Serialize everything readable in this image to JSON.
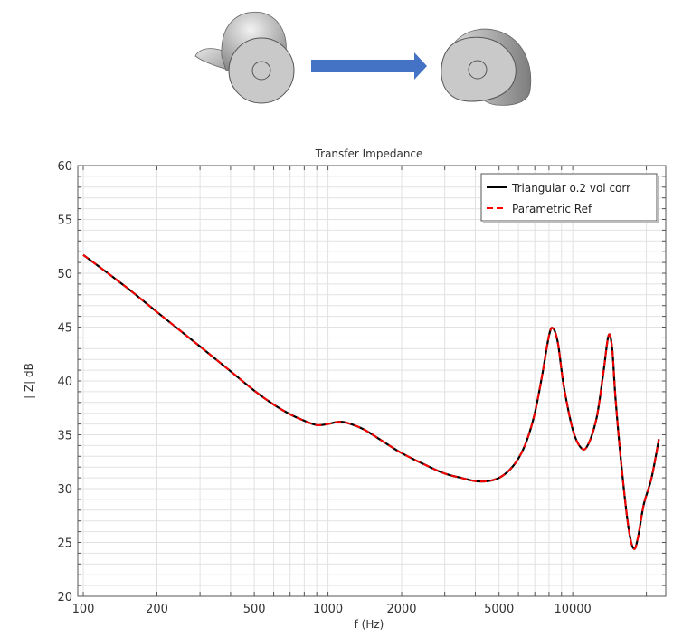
{
  "illustration": {
    "left_model": "earbud-original-shape",
    "arrow": {
      "direction": "right",
      "color": "#4472c4"
    },
    "right_model": "earbud-triangular-shape",
    "model_color": "#c8c8c8"
  },
  "chart_data": {
    "type": "line",
    "title": "Transfer Impedance",
    "xlabel": "f (Hz)",
    "ylabel": "| Z| dB",
    "xscale": "log",
    "xlim": [
      95,
      24000
    ],
    "ylim": [
      20,
      60
    ],
    "x_ticks": [
      100,
      200,
      500,
      1000,
      2000,
      5000,
      10000
    ],
    "x_tick_labels": [
      "100",
      "200",
      "500",
      "1000",
      "2000",
      "5000",
      "10000"
    ],
    "y_ticks": [
      20,
      25,
      30,
      35,
      40,
      45,
      50,
      55,
      60
    ],
    "y_tick_labels": [
      "20",
      "25",
      "30",
      "35",
      "40",
      "45",
      "50",
      "55",
      "60"
    ],
    "grid": true,
    "legend_position": "upper right",
    "x": [
      100,
      150,
      200,
      300,
      400,
      500,
      600,
      700,
      800,
      900,
      1000,
      1100,
      1200,
      1400,
      1700,
      2000,
      2500,
      3000,
      3500,
      4000,
      4500,
      5000,
      5500,
      6000,
      6500,
      7000,
      7500,
      8000,
      8300,
      8700,
      9200,
      10000,
      10800,
      11500,
      12500,
      13300,
      14000,
      14500,
      15000,
      16000,
      17000,
      17800,
      18500,
      19500,
      21000,
      22500
    ],
    "series": [
      {
        "name": "Triangular o.2 vol corr",
        "color": "#000000",
        "style": "solid",
        "values": [
          51.7,
          48.7,
          46.4,
          43.2,
          40.9,
          39.1,
          37.8,
          36.9,
          36.3,
          35.9,
          36.0,
          36.2,
          36.1,
          35.5,
          34.3,
          33.3,
          32.2,
          31.4,
          31.0,
          30.7,
          30.7,
          31.0,
          31.7,
          32.8,
          34.5,
          37.0,
          40.5,
          44.2,
          44.9,
          43.5,
          39.5,
          35.5,
          33.8,
          34.0,
          36.5,
          40.5,
          44.2,
          43.0,
          38.0,
          31.0,
          26.0,
          24.4,
          25.5,
          28.5,
          31.0,
          34.6
        ]
      },
      {
        "name": "Parametric Ref",
        "color": "#ff0000",
        "style": "dashed",
        "values": [
          51.7,
          48.7,
          46.4,
          43.2,
          40.9,
          39.1,
          37.8,
          36.9,
          36.3,
          35.9,
          36.0,
          36.2,
          36.1,
          35.5,
          34.3,
          33.3,
          32.2,
          31.4,
          31.0,
          30.7,
          30.7,
          31.0,
          31.7,
          32.8,
          34.5,
          37.0,
          40.5,
          44.2,
          44.9,
          43.5,
          39.5,
          35.5,
          33.8,
          34.0,
          36.5,
          40.5,
          44.2,
          43.0,
          38.0,
          31.0,
          26.0,
          24.4,
          25.5,
          28.5,
          31.0,
          34.6
        ]
      }
    ]
  }
}
